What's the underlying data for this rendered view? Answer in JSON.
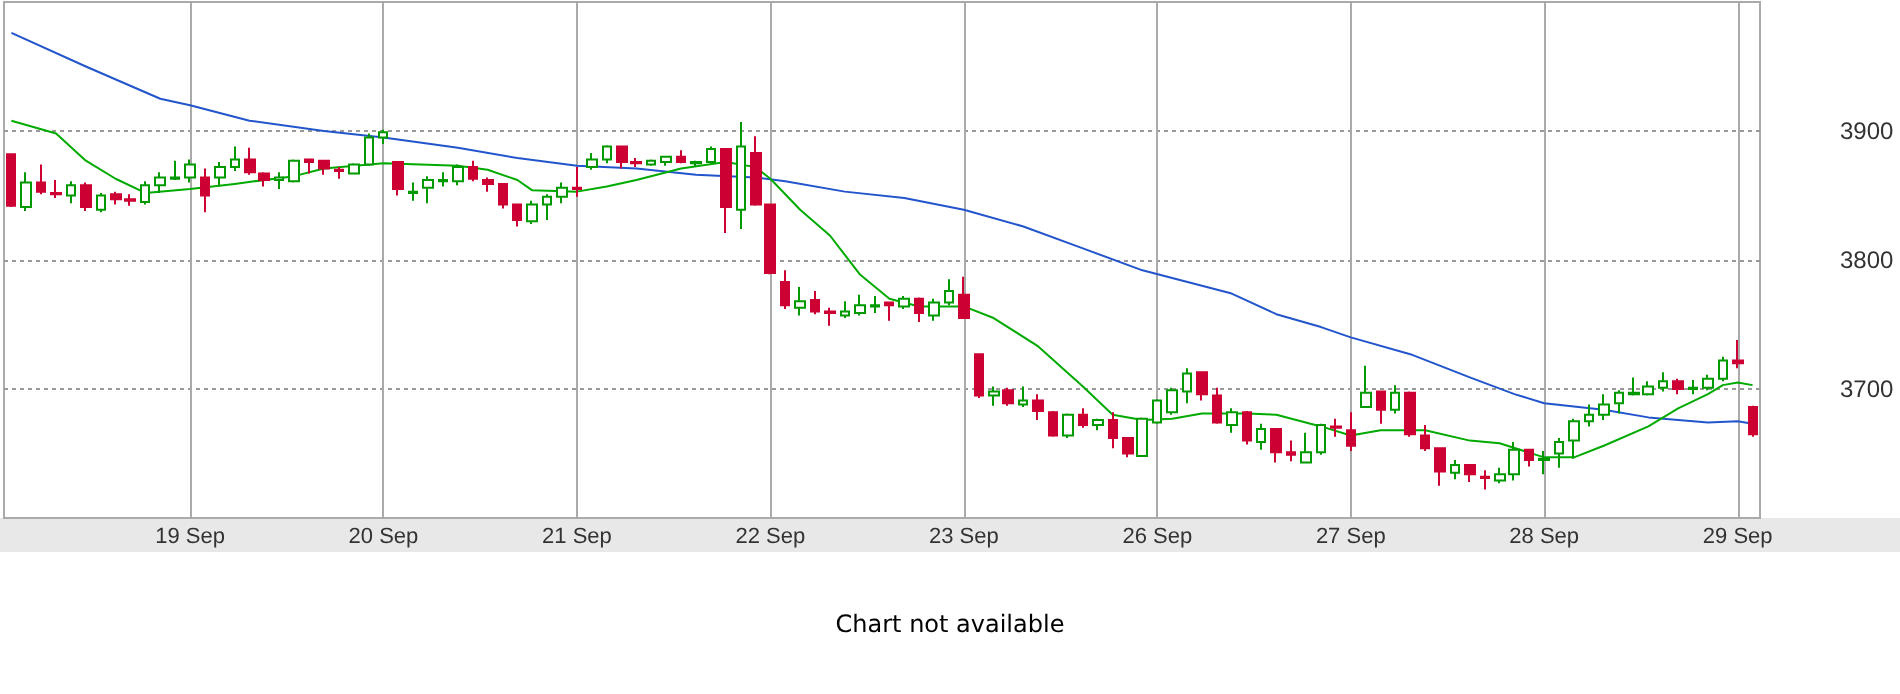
{
  "chart_data": {
    "type": "candlestick",
    "categories": [
      null,
      null,
      null,
      null,
      null,
      null,
      null,
      null,
      null,
      null,
      null,
      null,
      "19 Sep",
      null,
      null,
      null,
      null,
      null,
      null,
      null,
      null,
      null,
      null,
      null,
      null,
      "20 Sep",
      null,
      null,
      null,
      null,
      null,
      null,
      null,
      null,
      null,
      null,
      null,
      null,
      "21 Sep",
      null,
      null,
      null,
      null,
      null,
      null,
      null,
      null,
      null,
      null,
      null,
      null,
      "22 Sep",
      null,
      null,
      null,
      null,
      null,
      null,
      null,
      null,
      null,
      null,
      null,
      null,
      "23 Sep",
      null,
      null,
      null,
      null,
      null,
      null,
      null,
      null,
      null,
      null,
      null,
      null,
      "26 Sep",
      null,
      null,
      null,
      null,
      null,
      null,
      null,
      null,
      null,
      null,
      null,
      null,
      "27 Sep",
      null,
      null,
      null,
      null,
      null,
      null,
      null,
      null,
      null,
      null,
      null,
      null,
      "28 Sep",
      null,
      null,
      null,
      null,
      null,
      null,
      null,
      null,
      null,
      null,
      null,
      null,
      "29 Sep",
      null
    ],
    "ohlc": [
      [
        3882,
        3882,
        3841,
        3842
      ],
      [
        3841,
        3868,
        3838,
        3860
      ],
      [
        3860,
        3874,
        3851,
        3853
      ],
      [
        3852,
        3862,
        3848,
        3851
      ],
      [
        3850,
        3861,
        3844,
        3858
      ],
      [
        3858,
        3860,
        3838,
        3841
      ],
      [
        3839,
        3852,
        3837,
        3850
      ],
      [
        3851,
        3853,
        3843,
        3847
      ],
      [
        3847,
        3851,
        3842,
        3846
      ],
      [
        3845,
        3861,
        3843,
        3858
      ],
      [
        3858,
        3868,
        3852,
        3864
      ],
      [
        3863,
        3877,
        3862,
        3864
      ],
      [
        3864,
        3878,
        3860,
        3874
      ],
      [
        3864,
        3871,
        3837,
        3850
      ],
      [
        3864,
        3876,
        3857,
        3872
      ],
      [
        3872,
        3888,
        3869,
        3878
      ],
      [
        3878,
        3887,
        3866,
        3868
      ],
      [
        3867,
        3868,
        3857,
        3862
      ],
      [
        3862,
        3868,
        3855,
        3864
      ],
      [
        3861,
        3878,
        3860,
        3877
      ],
      [
        3878,
        3878,
        3867,
        3876
      ],
      [
        3877,
        3877,
        3866,
        3871
      ],
      [
        3870,
        3872,
        3863,
        3869
      ],
      [
        3867,
        3875,
        3867,
        3874
      ],
      [
        3874,
        3898,
        3873,
        3895
      ],
      [
        3895,
        3901,
        3890,
        3899
      ],
      [
        3876,
        3876,
        3850,
        3855
      ],
      [
        3852,
        3860,
        3846,
        3853
      ],
      [
        3856,
        3865,
        3844,
        3862
      ],
      [
        3861,
        3868,
        3857,
        3862
      ],
      [
        3861,
        3874,
        3858,
        3872
      ],
      [
        3872,
        3877,
        3861,
        3863
      ],
      [
        3862,
        3864,
        3853,
        3859
      ],
      [
        3859,
        3859,
        3840,
        3843
      ],
      [
        3843,
        3843,
        3826,
        3831
      ],
      [
        3830,
        3846,
        3828,
        3843
      ],
      [
        3843,
        3851,
        3831,
        3849
      ],
      [
        3849,
        3860,
        3844,
        3856
      ],
      [
        3856,
        3872,
        3849,
        3855
      ],
      [
        3872,
        3883,
        3870,
        3878
      ],
      [
        3878,
        3889,
        3875,
        3888
      ],
      [
        3888,
        3888,
        3871,
        3876
      ],
      [
        3876,
        3879,
        3872,
        3875
      ],
      [
        3874,
        3878,
        3873,
        3877
      ],
      [
        3876,
        3880,
        3873,
        3880
      ],
      [
        3880,
        3885,
        3875,
        3876
      ],
      [
        3875,
        3877,
        3872,
        3876
      ],
      [
        3876,
        3888,
        3875,
        3886
      ],
      [
        3886,
        3886,
        3821,
        3841
      ],
      [
        3839,
        3907,
        3824,
        3888
      ],
      [
        3883,
        3896,
        3842,
        3843
      ],
      [
        3843,
        3843,
        3789,
        3790
      ],
      [
        3783,
        3792,
        3762,
        3765
      ],
      [
        3763,
        3779,
        3757,
        3768
      ],
      [
        3769,
        3776,
        3758,
        3760
      ],
      [
        3760,
        3763,
        3749,
        3759
      ],
      [
        3757,
        3768,
        3755,
        3760
      ],
      [
        3759,
        3773,
        3757,
        3765
      ],
      [
        3764,
        3772,
        3759,
        3765
      ],
      [
        3767,
        3767,
        3753,
        3765
      ],
      [
        3764,
        3772,
        3762,
        3770
      ],
      [
        3770,
        3771,
        3752,
        3759
      ],
      [
        3757,
        3770,
        3753,
        3767
      ],
      [
        3767,
        3785,
        3765,
        3776
      ],
      [
        3773,
        3787,
        3755,
        3755
      ],
      [
        3727,
        3727,
        3693,
        3695
      ],
      [
        3695,
        3702,
        3687,
        3698
      ],
      [
        3699,
        3701,
        3687,
        3689
      ],
      [
        3688,
        3702,
        3686,
        3691
      ],
      [
        3691,
        3696,
        3676,
        3683
      ],
      [
        3682,
        3683,
        3663,
        3664
      ],
      [
        3664,
        3681,
        3662,
        3680
      ],
      [
        3680,
        3685,
        3670,
        3672
      ],
      [
        3672,
        3677,
        3668,
        3676
      ],
      [
        3676,
        3682,
        3654,
        3662
      ],
      [
        3662,
        3662,
        3647,
        3650
      ],
      [
        3648,
        3678,
        3648,
        3677
      ],
      [
        3674,
        3692,
        3673,
        3691
      ],
      [
        3682,
        3701,
        3680,
        3699
      ],
      [
        3698,
        3716,
        3689,
        3712
      ],
      [
        3713,
        3713,
        3691,
        3696
      ],
      [
        3695,
        3701,
        3673,
        3674
      ],
      [
        3672,
        3685,
        3666,
        3682
      ],
      [
        3682,
        3683,
        3657,
        3660
      ],
      [
        3659,
        3673,
        3653,
        3669
      ],
      [
        3669,
        3669,
        3643,
        3651
      ],
      [
        3651,
        3660,
        3644,
        3649
      ],
      [
        3643,
        3666,
        3643,
        3651
      ],
      [
        3651,
        3673,
        3649,
        3672
      ],
      [
        3671,
        3677,
        3663,
        3670
      ],
      [
        3668,
        3682,
        3652,
        3656
      ],
      [
        3686,
        3718,
        3686,
        3697
      ],
      [
        3698,
        3698,
        3673,
        3684
      ],
      [
        3684,
        3703,
        3681,
        3697
      ],
      [
        3697,
        3698,
        3663,
        3665
      ],
      [
        3664,
        3672,
        3652,
        3654
      ],
      [
        3654,
        3654,
        3625,
        3636
      ],
      [
        3635,
        3645,
        3630,
        3641
      ],
      [
        3641,
        3641,
        3628,
        3634
      ],
      [
        3632,
        3637,
        3622,
        3631
      ],
      [
        3629,
        3639,
        3627,
        3634
      ],
      [
        3634,
        3659,
        3629,
        3653
      ],
      [
        3653,
        3653,
        3640,
        3645
      ],
      [
        3645,
        3652,
        3634,
        3646
      ],
      [
        3650,
        3662,
        3639,
        3659
      ],
      [
        3660,
        3677,
        3646,
        3675
      ],
      [
        3675,
        3688,
        3671,
        3680
      ],
      [
        3680,
        3696,
        3676,
        3688
      ],
      [
        3689,
        3699,
        3681,
        3697
      ],
      [
        3696,
        3709,
        3695,
        3697
      ],
      [
        3696,
        3706,
        3695,
        3702
      ],
      [
        3701,
        3713,
        3698,
        3706
      ],
      [
        3706,
        3708,
        3696,
        3700
      ],
      [
        3700,
        3707,
        3696,
        3701
      ],
      [
        3701,
        3711,
        3699,
        3708
      ],
      [
        3708,
        3725,
        3706,
        3722
      ],
      [
        3722,
        3738,
        3716,
        3720
      ],
      [
        3686,
        3687,
        3663,
        3665
      ]
    ],
    "colors": [
      "#cc0033",
      "#009900",
      "#cc0033",
      "#cc0033",
      "#009900",
      "#cc0033",
      "#009900",
      "#cc0033",
      "#cc0033",
      "#009900",
      "#009900",
      "#009900",
      "#009900",
      "#cc0033",
      "#009900",
      "#009900",
      "#cc0033",
      "#cc0033",
      "#009900",
      "#009900",
      "#cc0033",
      "#cc0033",
      "#cc0033",
      "#009900",
      "#009900",
      "#009900",
      "#cc0033",
      "#009900",
      "#009900",
      "#009900",
      "#009900",
      "#cc0033",
      "#cc0033",
      "#cc0033",
      "#cc0033",
      "#009900",
      "#009900",
      "#009900",
      "#cc0033",
      "#009900",
      "#009900",
      "#cc0033",
      "#cc0033",
      "#009900",
      "#009900",
      "#cc0033",
      "#009900",
      "#009900",
      "#cc0033",
      "#009900",
      "#cc0033",
      "#cc0033",
      "#cc0033",
      "#009900",
      "#cc0033",
      "#cc0033",
      "#009900",
      "#009900",
      "#009900",
      "#cc0033",
      "#009900",
      "#cc0033",
      "#009900",
      "#009900",
      "#cc0033",
      "#cc0033",
      "#009900",
      "#cc0033",
      "#009900",
      "#cc0033",
      "#cc0033",
      "#009900",
      "#cc0033",
      "#009900",
      "#cc0033",
      "#cc0033",
      "#009900",
      "#009900",
      "#009900",
      "#009900",
      "#cc0033",
      "#cc0033",
      "#009900",
      "#cc0033",
      "#009900",
      "#cc0033",
      "#cc0033",
      "#009900",
      "#009900",
      "#cc0033",
      "#cc0033",
      "#009900",
      "#cc0033",
      "#009900",
      "#cc0033",
      "#cc0033",
      "#cc0033",
      "#009900",
      "#cc0033",
      "#cc0033",
      "#009900",
      "#009900",
      "#cc0033",
      "#009900",
      "#009900",
      "#009900",
      "#009900",
      "#009900",
      "#009900",
      "#009900",
      "#009900",
      "#009900",
      "#cc0033",
      "#009900",
      "#009900",
      "#009900",
      "#cc0033",
      "#cc0033"
    ],
    "series": [
      {
        "type": "line",
        "color": "#2255cc",
        "values": [
          3976,
          null,
          null,
          null,
          null,
          3950,
          null,
          null,
          null,
          null,
          3925,
          null,
          3920,
          null,
          null,
          null,
          3908,
          null,
          null,
          null,
          null,
          3900,
          null,
          null,
          null,
          3895,
          null,
          null,
          null,
          null,
          3887,
          null,
          null,
          null,
          3879,
          null,
          null,
          null,
          3873,
          null,
          null,
          null,
          3871,
          null,
          null,
          null,
          3866,
          null,
          null,
          null,
          3864,
          null,
          3861,
          null,
          null,
          null,
          3853,
          null,
          null,
          null,
          3848,
          null,
          null,
          null,
          3839,
          null,
          null,
          null,
          3826,
          null,
          null,
          null,
          3809,
          null,
          null,
          null,
          3792,
          null,
          null,
          null,
          null,
          null,
          3774,
          null,
          null,
          3758,
          null,
          null,
          3748,
          null,
          3740,
          null,
          null,
          null,
          3727,
          null,
          null,
          null,
          3709,
          null,
          null,
          3696,
          null,
          3689,
          null,
          null,
          null,
          3684,
          null,
          null,
          3678,
          null,
          3676,
          null,
          3674,
          null,
          3675,
          3673
        ]
      },
      {
        "type": "line",
        "color": "#00aa00",
        "values": [
          3908,
          null,
          null,
          3898,
          null,
          3877,
          null,
          3863,
          null,
          3852,
          null,
          null,
          3855,
          null,
          null,
          3859,
          null,
          null,
          null,
          3865,
          null,
          3871,
          null,
          null,
          null,
          3875,
          null,
          null,
          null,
          null,
          3873,
          null,
          3870,
          null,
          3862,
          3854,
          null,
          null,
          3853,
          null,
          3857,
          null,
          3862,
          null,
          null,
          3871,
          null,
          null,
          3876,
          null,
          3872,
          3863,
          null,
          3839,
          null,
          3819,
          null,
          3789,
          null,
          3770,
          null,
          3764,
          null,
          null,
          3764,
          null,
          3755,
          null,
          null,
          3733,
          null,
          null,
          3702,
          null,
          3680,
          null,
          3676,
          null,
          3677,
          null,
          3681,
          null,
          null,
          3681,
          null,
          3680,
          null,
          null,
          3671,
          null,
          3664,
          null,
          3668,
          null,
          null,
          3668,
          null,
          null,
          3660,
          null,
          3658,
          null,
          null,
          3647,
          null,
          3647,
          null,
          3656,
          null,
          null,
          3671,
          null,
          3685,
          null,
          3696,
          3703,
          3705,
          3703
        ]
      }
    ],
    "ylim": [
      3600,
      4000
    ],
    "yticks": [
      3700,
      3800,
      3900
    ],
    "grid": true,
    "annotations": [
      "Chart not available"
    ]
  }
}
